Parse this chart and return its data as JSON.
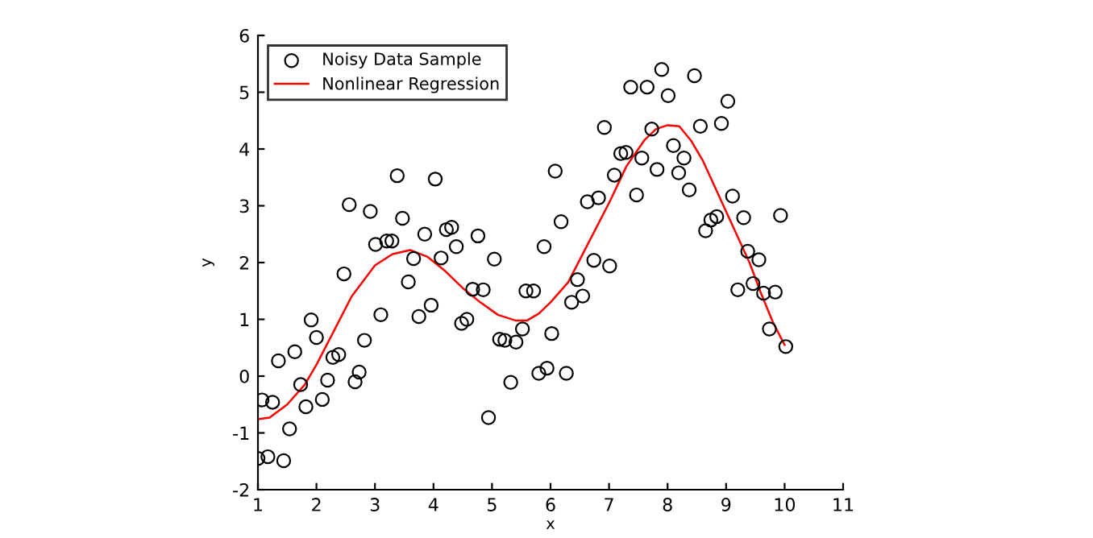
{
  "chart_data": {
    "type": "scatter",
    "xlabel": "x",
    "ylabel": "y",
    "xlim": [
      1,
      11
    ],
    "ylim": [
      -2,
      6
    ],
    "xticks": [
      1,
      2,
      3,
      4,
      5,
      6,
      7,
      8,
      9,
      10,
      11
    ],
    "yticks": [
      -2,
      -1,
      0,
      1,
      2,
      3,
      4,
      5,
      6
    ],
    "grid": false,
    "legend": "top left",
    "series": [
      {
        "name": "Noisy Data Sample",
        "marker": "circle",
        "color": "#000000",
        "x": [
          1.0,
          1.07,
          1.17,
          1.25,
          1.35,
          1.44,
          1.54,
          1.63,
          1.73,
          1.82,
          1.91,
          2.0,
          2.1,
          2.19,
          2.28,
          2.38,
          2.47,
          2.56,
          2.66,
          2.73,
          2.82,
          2.92,
          3.01,
          3.1,
          3.2,
          3.29,
          3.38,
          3.47,
          3.57,
          3.66,
          3.75,
          3.85,
          3.96,
          4.03,
          4.13,
          4.22,
          4.31,
          4.39,
          4.48,
          4.57,
          4.67,
          4.76,
          4.85,
          4.94,
          5.04,
          5.13,
          5.22,
          5.32,
          5.41,
          5.52,
          5.58,
          5.71,
          5.8,
          5.89,
          5.94,
          6.02,
          6.08,
          6.18,
          6.27,
          6.36,
          6.46,
          6.55,
          6.63,
          6.74,
          6.82,
          6.92,
          7.01,
          7.09,
          7.2,
          7.29,
          7.37,
          7.47,
          7.56,
          7.65,
          7.73,
          7.82,
          7.9,
          8.01,
          8.1,
          8.19,
          8.28,
          8.37,
          8.46,
          8.56,
          8.65,
          8.74,
          8.84,
          8.92,
          9.03,
          9.11,
          9.2,
          9.3,
          9.37,
          9.46,
          9.56,
          9.64,
          9.74,
          9.84,
          9.93,
          10.02
        ],
        "values": [
          -1.45,
          -0.42,
          -1.42,
          -0.46,
          0.27,
          -1.49,
          -0.93,
          0.43,
          -0.15,
          -0.54,
          0.99,
          0.68,
          -0.41,
          -0.07,
          0.33,
          0.38,
          1.8,
          3.02,
          -0.1,
          0.07,
          0.63,
          2.9,
          2.32,
          1.08,
          2.38,
          2.38,
          3.53,
          2.78,
          1.66,
          2.07,
          1.05,
          2.5,
          1.25,
          3.47,
          2.08,
          2.58,
          2.62,
          2.28,
          0.93,
          1.0,
          1.53,
          2.47,
          1.52,
          -0.73,
          2.06,
          0.65,
          0.63,
          -0.11,
          0.6,
          0.83,
          1.5,
          1.5,
          0.05,
          2.28,
          0.14,
          0.75,
          3.61,
          2.72,
          0.05,
          1.3,
          1.7,
          1.41,
          3.07,
          2.04,
          3.14,
          4.38,
          1.94,
          3.54,
          3.92,
          3.94,
          5.09,
          3.19,
          3.84,
          5.09,
          4.35,
          3.64,
          5.4,
          4.94,
          4.06,
          3.58,
          3.84,
          3.28,
          5.29,
          4.4,
          2.56,
          2.75,
          2.81,
          4.45,
          4.84,
          3.17,
          1.52,
          2.79,
          2.2,
          1.63,
          2.05,
          1.46,
          0.83,
          1.48,
          2.83,
          0.52
        ]
      },
      {
        "name": "Nonlinear Regression",
        "type": "line",
        "marker": "none",
        "line_style": "solid",
        "color": "#ff0000",
        "x": [
          1.0,
          1.2,
          1.5,
          1.8,
          2.0,
          2.3,
          2.6,
          3.0,
          3.3,
          3.6,
          3.9,
          4.2,
          4.5,
          4.8,
          5.1,
          5.4,
          5.6,
          5.8,
          6.0,
          6.3,
          6.6,
          7.0,
          7.3,
          7.6,
          7.8,
          8.0,
          8.2,
          8.4,
          8.6,
          8.8,
          9.0,
          9.2,
          9.4,
          9.6,
          9.8,
          10.0
        ],
        "values": [
          -0.76,
          -0.73,
          -0.5,
          -0.15,
          0.2,
          0.8,
          1.4,
          1.95,
          2.15,
          2.22,
          2.1,
          1.85,
          1.55,
          1.3,
          1.08,
          0.98,
          0.98,
          1.1,
          1.3,
          1.65,
          2.25,
          3.05,
          3.7,
          4.15,
          4.35,
          4.42,
          4.4,
          4.15,
          3.8,
          3.35,
          2.9,
          2.45,
          2.0,
          1.45,
          0.95,
          0.55
        ]
      }
    ]
  }
}
